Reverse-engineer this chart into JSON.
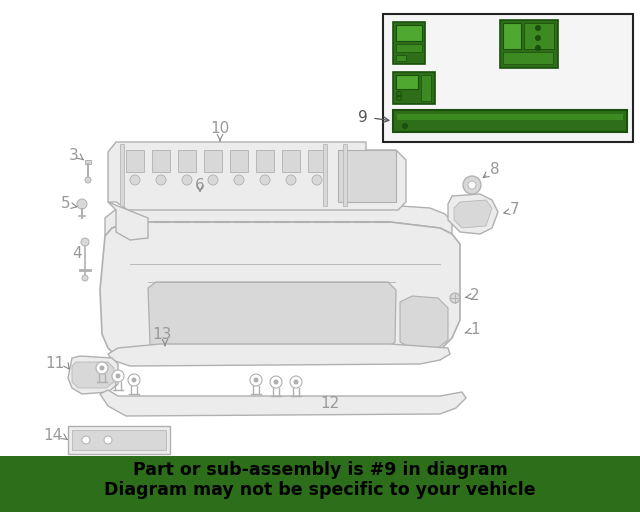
{
  "banner_text_line1": "Part or sub-assembly is #9 in diagram",
  "banner_text_line2": "Diagram may not be specific to your vehicle",
  "banner_color": "#2d6e1a",
  "banner_text_color": "#000000",
  "bg_color": "#ffffff",
  "line_color": "#b0b0b0",
  "fill_color": "#ececec",
  "fill_dark": "#d8d8d8",
  "highlight_green": "#2e6e18",
  "highlight_green_mid": "#3d8a22",
  "highlight_green_light": "#4fa830",
  "label_color": "#999999",
  "inset_border": "#222222",
  "label_font_size": 10,
  "banner_font_size": 12.5,
  "arrow_color": "#888888"
}
